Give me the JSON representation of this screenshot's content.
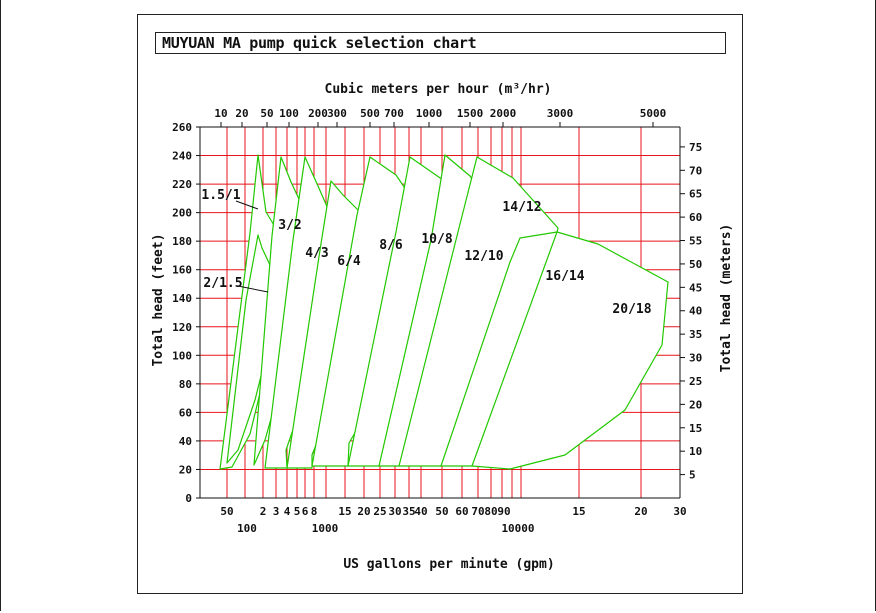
{
  "chart_data": {
    "type": "area",
    "title": "MUYUAN  MA pump quick selection chart",
    "xlabel": "US gallons per minute (gpm)",
    "x2label": "Cubic meters per hour (m³/hr)",
    "ylabel": "Total head (feet)",
    "y2label": "Total head (meters)",
    "x_scale": "log",
    "ylim": [
      0,
      260
    ],
    "y_ticks": [
      0,
      20,
      40,
      60,
      80,
      100,
      120,
      140,
      160,
      180,
      200,
      220,
      240,
      260
    ],
    "y2_ticks": [
      5,
      10,
      15,
      20,
      25,
      30,
      35,
      40,
      45,
      50,
      55,
      60,
      65,
      70,
      75
    ],
    "x_bottom_row1": [
      "50",
      "2",
      "3",
      "4",
      "5",
      "6",
      "8",
      "15",
      "20",
      "25",
      "30",
      "35",
      "40",
      "50",
      "60",
      "70",
      "80",
      "90",
      "15",
      "20",
      "30"
    ],
    "x_bottom_row2": [
      "100",
      "1000",
      "10000"
    ],
    "x_top_ticks": [
      "10",
      "20",
      "50",
      "100",
      "200",
      "300",
      "500",
      "700",
      "1000",
      "1500",
      "2000",
      "3000",
      "5000"
    ],
    "grid": true,
    "series": [
      {
        "name": "1.5/1"
      },
      {
        "name": "2/1.5"
      },
      {
        "name": "3/2"
      },
      {
        "name": "4/3"
      },
      {
        "name": "6/4"
      },
      {
        "name": "8/6"
      },
      {
        "name": "10/8"
      },
      {
        "name": "12/10"
      },
      {
        "name": "14/12"
      },
      {
        "name": "16/14"
      },
      {
        "name": "20/18"
      }
    ],
    "colors": {
      "grid": "#e8141c",
      "envelope": "#22c800",
      "axis": "#111111"
    }
  }
}
